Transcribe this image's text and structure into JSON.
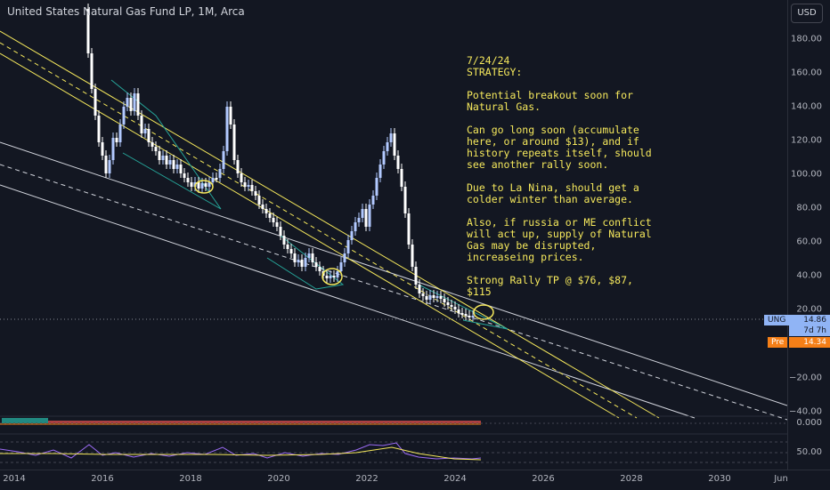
{
  "header": {
    "title": "United States Natural Gas Fund LP, 1M, Arca"
  },
  "currency_button": "USD",
  "price_axis": {
    "ticks": [
      "180.00",
      "160.00",
      "140.00",
      "120.00",
      "100.00",
      "80.00",
      "60.00",
      "40.00",
      "20.00",
      "−20.00",
      "−40.00"
    ],
    "last_label": "UNG",
    "last_price": "14.86",
    "countdown": "7d 7h",
    "pre_label": "Pre",
    "pre_price": "14.34"
  },
  "time_axis": {
    "ticks": [
      "2014",
      "2016",
      "2018",
      "2020",
      "2022",
      "2024",
      "2026",
      "2028",
      "2030",
      "Jun"
    ]
  },
  "annotation": {
    "date": "7/24/24",
    "heading": "STRATEGY:",
    "p1": "Potential breakout soon for Natural Gas.",
    "p2": "Can go long soon (accumulate here, or around $13), and if history repeats itself, should see another rally soon.",
    "p3": "Due to La Nina, should get a colder winter than average.",
    "p4": "Also, if russia or ME conflict will act up, supply of Natural Gas may be disrupted, increaseing prices.",
    "p5": "Strong Rally TP @ $76, $87, $115"
  },
  "indicator_panes": {
    "pane1_value": "0.000",
    "pane2_value": "50.00"
  },
  "colors": {
    "up": "#b2c9ff",
    "down": "#ffffff",
    "trend_yellow": "#f5e85c",
    "channel_white": "#d1d4dc",
    "teal": "#26a69a",
    "pre_bg": "#f57f17",
    "ung_bg": "#90b4f5"
  }
}
